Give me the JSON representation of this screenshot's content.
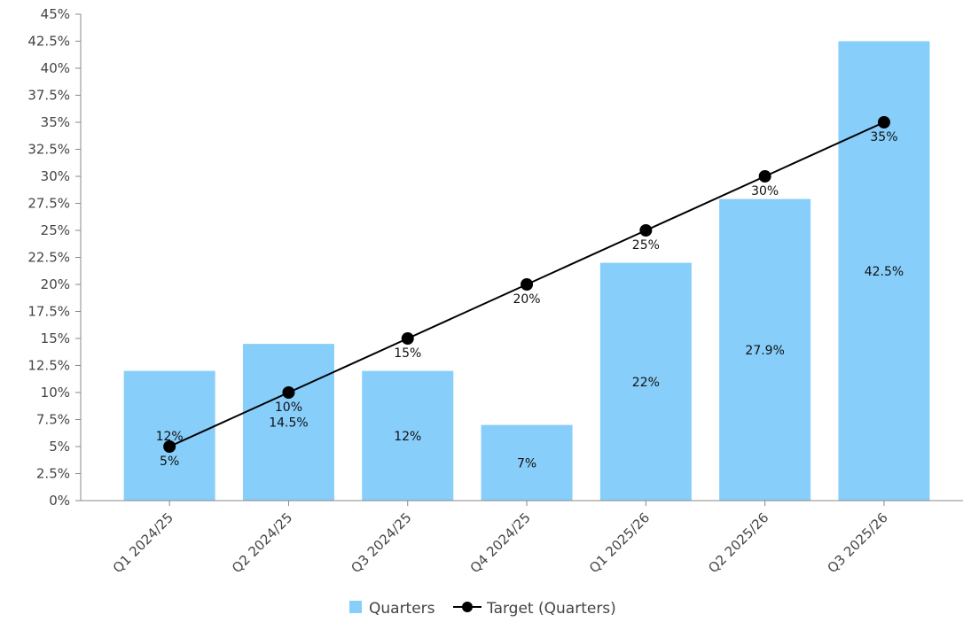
{
  "chart_data": {
    "type": "bar",
    "title": "",
    "xlabel": "",
    "ylabel": "",
    "categories": [
      "Q1 2024/25",
      "Q2 2024/25",
      "Q3 2024/25",
      "Q4 2024/25",
      "Q1 2025/26",
      "Q2 2025/26",
      "Q3 2025/26"
    ],
    "ylim": [
      0,
      45
    ],
    "yticks": [
      {
        "value": 0,
        "label": "0%"
      },
      {
        "value": 2.5,
        "label": "2.5%"
      },
      {
        "value": 5,
        "label": "5%"
      },
      {
        "value": 7.5,
        "label": "7.5%"
      },
      {
        "value": 10,
        "label": "10%"
      },
      {
        "value": 12.5,
        "label": "12.5%"
      },
      {
        "value": 15,
        "label": "15%"
      },
      {
        "value": 17.5,
        "label": "17.5%"
      },
      {
        "value": 20,
        "label": "20%"
      },
      {
        "value": 22.5,
        "label": "22.5%"
      },
      {
        "value": 25,
        "label": "25%"
      },
      {
        "value": 27.5,
        "label": "27.5%"
      },
      {
        "value": 30,
        "label": "30%"
      },
      {
        "value": 32.5,
        "label": "32.5%"
      },
      {
        "value": 35,
        "label": "35%"
      },
      {
        "value": 37.5,
        "label": "37.5%"
      },
      {
        "value": 40,
        "label": "40%"
      },
      {
        "value": 42.5,
        "label": "42.5%"
      },
      {
        "value": 45,
        "label": "45%"
      }
    ],
    "grid": false,
    "legend_position": "bottom-center",
    "series": [
      {
        "name": "Quarters",
        "kind": "bar",
        "color": "#87CEFA",
        "values": [
          12,
          14.5,
          12,
          7,
          22,
          27.9,
          42.5
        ],
        "labels": [
          "12%",
          "14.5%",
          "12%",
          "7%",
          "22%",
          "27.9%",
          "42.5%"
        ]
      },
      {
        "name": "Target (Quarters)",
        "kind": "line",
        "color": "#000000",
        "values": [
          5,
          10,
          15,
          20,
          25,
          30,
          35
        ],
        "labels": [
          "5%",
          "10%",
          "15%",
          "20%",
          "25%",
          "30%",
          "35%"
        ]
      }
    ]
  }
}
